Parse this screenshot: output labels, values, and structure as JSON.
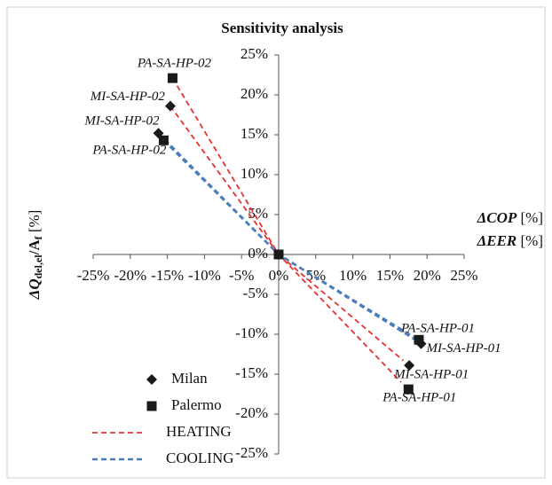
{
  "chart_data": {
    "type": "scatter",
    "title": "Sensitivity analysis",
    "x_label": [
      "ΔCOP",
      " [%]"
    ],
    "x_label2": [
      "ΔEER",
      " [%]"
    ],
    "y_label": [
      "ΔQ",
      "del,el",
      "/A",
      "f",
      " [%]"
    ],
    "xlim": [
      -25,
      25
    ],
    "ylim": [
      -25,
      25
    ],
    "xticks": [
      {
        "value": -25,
        "label": "-25%"
      },
      {
        "value": -20,
        "label": "-20%"
      },
      {
        "value": -15,
        "label": "-15%"
      },
      {
        "value": -10,
        "label": "-10%"
      },
      {
        "value": -5,
        "label": "-5%"
      },
      {
        "value": 0,
        "label": "0%"
      },
      {
        "value": 5,
        "label": "5%"
      },
      {
        "value": 10,
        "label": "10%"
      },
      {
        "value": 15,
        "label": "15%"
      },
      {
        "value": 20,
        "label": "20%"
      },
      {
        "value": 25,
        "label": "25%"
      }
    ],
    "yticks": [
      {
        "value": -25,
        "label": "-25%"
      },
      {
        "value": -20,
        "label": "-20%"
      },
      {
        "value": -15,
        "label": "-15%"
      },
      {
        "value": -10,
        "label": "-10%"
      },
      {
        "value": -5,
        "label": "-5%"
      },
      {
        "value": 0,
        "label": "0%"
      },
      {
        "value": 5,
        "label": "5%"
      },
      {
        "value": 10,
        "label": "10%"
      },
      {
        "value": 15,
        "label": "15%"
      },
      {
        "value": 20,
        "label": "20%"
      },
      {
        "value": 25,
        "label": "25%"
      }
    ],
    "series": [
      {
        "name": "Milan",
        "marker": "diamond",
        "color": "#1a1a1a",
        "x": [
          -14.6,
          -16.2,
          0,
          19.2,
          17.6
        ],
        "y": [
          18.6,
          15.2,
          0,
          -11.2,
          -13.9
        ],
        "labels": [
          "MI-SA-HP-02",
          "MI-SA-HP-02",
          null,
          "MI-SA-HP-01",
          "MI-SA-HP-01"
        ]
      },
      {
        "name": "Palermo",
        "marker": "square",
        "color": "#1a1a1a",
        "x": [
          -14.3,
          -15.5,
          0,
          18.9,
          17.5
        ],
        "y": [
          22.1,
          14.3,
          0,
          -10.7,
          -16.9
        ],
        "labels": [
          "PA-SA-HP-02",
          "PA-SA-HP-02",
          null,
          "PA-SA-HP-01",
          "PA-SA-HP-01"
        ]
      },
      {
        "name": "HEATING",
        "marker": "line",
        "color": "#e8312f",
        "x": [
          -14.3,
          0,
          16.5,
          null,
          -14.6,
          0,
          16.8
        ],
        "y": [
          22.1,
          0,
          -16.0,
          null,
          18.6,
          0,
          -13.3
        ]
      },
      {
        "name": "COOLING",
        "marker": "line",
        "color": "#4a7ebb",
        "x": [
          -15.5,
          0,
          18.3,
          null,
          -16.2,
          0,
          18.6
        ],
        "y": [
          14.3,
          0,
          -10.4,
          null,
          15.2,
          0,
          -10.8
        ]
      }
    ]
  }
}
